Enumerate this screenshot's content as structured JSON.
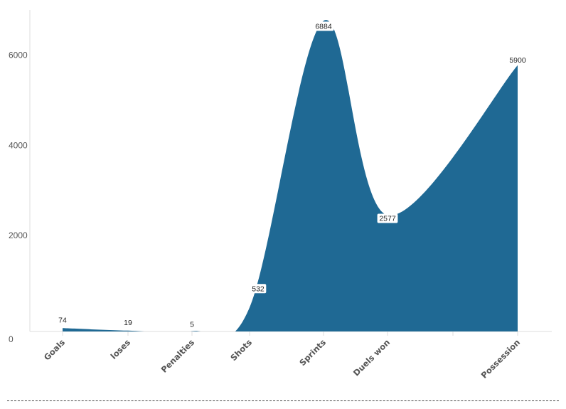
{
  "chart_data": {
    "type": "area",
    "categories": [
      "Goals",
      "loses",
      "Penalties",
      "Shots",
      "Sprints",
      "Duels won",
      "Possession"
    ],
    "series": [
      {
        "values": [
          74,
          19,
          5,
          532,
          6884,
          2577,
          5900
        ]
      }
    ],
    "data_labels": [
      "74",
      "19",
      "5",
      "532",
      "6884",
      "2577",
      "5900"
    ],
    "y_ticks": [
      0,
      2000,
      4000,
      6000
    ],
    "y_tick_labels": [
      "0",
      "2000",
      "4000",
      "6000"
    ],
    "ylim": [
      0,
      7000
    ],
    "grid": false,
    "legend": "none",
    "colors": {
      "area": "#1f6994",
      "axis": "#dddddd",
      "text": "#555555",
      "footer": "#444444"
    }
  }
}
